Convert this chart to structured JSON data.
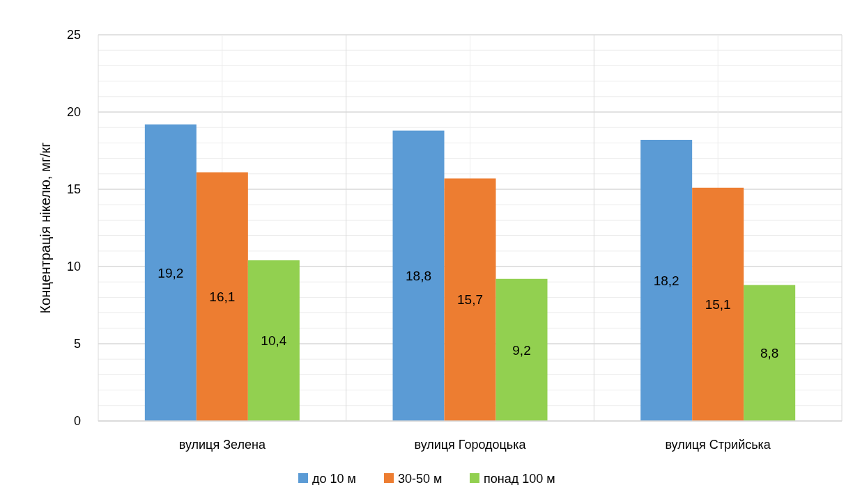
{
  "chart_data": {
    "type": "bar",
    "ylabel": "Концентрація нікелю, мг/кг",
    "categories": [
      "вулиця Зелена",
      "вулиця Городоцька",
      "вулиця Стрийська"
    ],
    "series": [
      {
        "name": "до 10 м",
        "color": "#5b9bd5",
        "values": [
          19.2,
          18.8,
          18.2
        ]
      },
      {
        "name": "30-50 м",
        "color": "#ed7d31",
        "values": [
          16.1,
          15.7,
          15.1
        ]
      },
      {
        "name": "понад 100 м",
        "color": "#92d050",
        "values": [
          10.4,
          9.2,
          8.8
        ]
      }
    ],
    "value_labels": [
      [
        "19,2",
        "18,8",
        "18,2"
      ],
      [
        "16,1",
        "15,7",
        "15,1"
      ],
      [
        "10,4",
        "9,2",
        "8,8"
      ]
    ],
    "ylim": [
      0,
      25
    ],
    "yticks": [
      0,
      {
        "value": 1,
        "label": null
      },
      {
        "value": 2,
        "label": null
      },
      {
        "value": 3,
        "label": null
      },
      {
        "value": 4,
        "label": null
      },
      5,
      {
        "value": 6,
        "label": null
      },
      {
        "value": 7,
        "label": null
      },
      {
        "value": 8,
        "label": null
      },
      {
        "value": 9,
        "label": null
      },
      10,
      {
        "value": 11,
        "label": null
      },
      {
        "value": 12,
        "label": null
      },
      {
        "value": 13,
        "label": null
      },
      {
        "value": 14,
        "label": null
      },
      15,
      {
        "value": 16,
        "label": null
      },
      {
        "value": 17,
        "label": null
      },
      {
        "value": 18,
        "label": null
      },
      {
        "value": 19,
        "label": null
      },
      20,
      {
        "value": 21,
        "label": null
      },
      {
        "value": 22,
        "label": null
      },
      {
        "value": 23,
        "label": null
      },
      {
        "value": 24,
        "label": null
      },
      25
    ],
    "grid": true,
    "legend": "bottom"
  }
}
